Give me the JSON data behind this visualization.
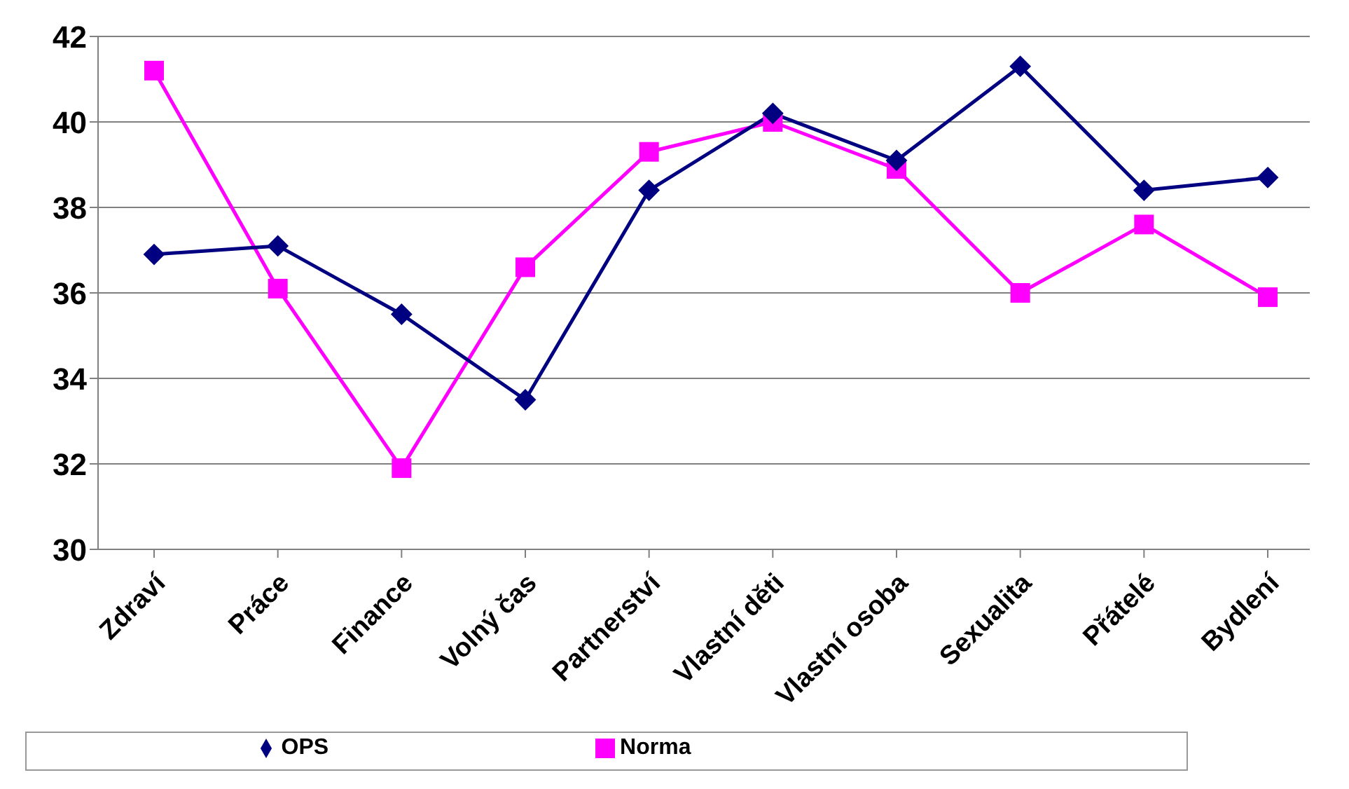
{
  "chart_data": {
    "type": "line",
    "categories": [
      "Zdraví",
      "Práce",
      "Finance",
      "Volný čas",
      "Partnerství",
      "Vlastní děti",
      "Vlastní osoba",
      "Sexualita",
      "Přátelé",
      "Bydlení"
    ],
    "series": [
      {
        "name": "OPS",
        "color": "#000080",
        "marker": "diamond",
        "values": [
          36.9,
          37.1,
          35.5,
          33.5,
          38.4,
          40.2,
          39.1,
          41.3,
          38.4,
          38.7
        ]
      },
      {
        "name": "Norma",
        "color": "#ff00ff",
        "marker": "square",
        "values": [
          41.2,
          36.1,
          31.9,
          36.6,
          39.3,
          40.0,
          38.9,
          36.0,
          37.6,
          35.9
        ]
      }
    ],
    "ylim": [
      30,
      42
    ],
    "yticks": [
      30,
      32,
      34,
      36,
      38,
      40,
      42
    ],
    "grid": "y",
    "legend": "bottom"
  }
}
